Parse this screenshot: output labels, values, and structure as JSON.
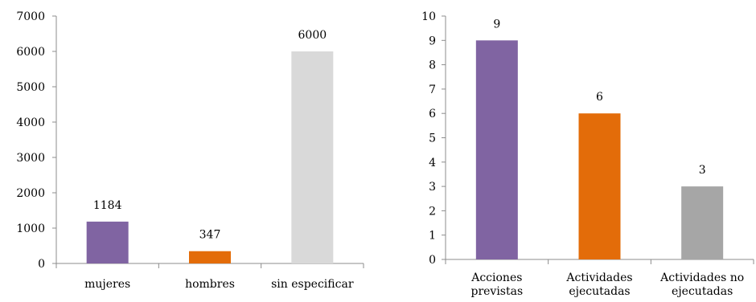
{
  "chart_data": [
    {
      "type": "bar",
      "categories": [
        "mujeres",
        "hombres",
        "sin especificar"
      ],
      "values": [
        1184,
        347,
        6000
      ],
      "data_labels": [
        "1184",
        "347",
        "6000"
      ],
      "colors": [
        "#8064a2",
        "#e36c09",
        "#d9d9d9"
      ],
      "ylim": [
        0,
        7000
      ],
      "yticks": [
        0,
        1000,
        2000,
        3000,
        4000,
        5000,
        6000,
        7000
      ],
      "grid": false,
      "title": "",
      "xlabel": "",
      "ylabel": ""
    },
    {
      "type": "bar",
      "categories": [
        "Acciones previstas",
        "Actividades ejecutadas",
        "Actividades no ejecutadas"
      ],
      "category_lines": [
        [
          "Acciones",
          "previstas"
        ],
        [
          "Actividades",
          "ejecutadas"
        ],
        [
          "Actividades no",
          "ejecutadas"
        ]
      ],
      "values": [
        9,
        6,
        3
      ],
      "data_labels": [
        "9",
        "6",
        "3"
      ],
      "colors": [
        "#8064a2",
        "#e36c09",
        "#a6a6a6"
      ],
      "ylim": [
        0,
        10
      ],
      "yticks": [
        0,
        1,
        2,
        3,
        4,
        5,
        6,
        7,
        8,
        9,
        10
      ],
      "grid": false,
      "title": "",
      "xlabel": "",
      "ylabel": ""
    }
  ]
}
